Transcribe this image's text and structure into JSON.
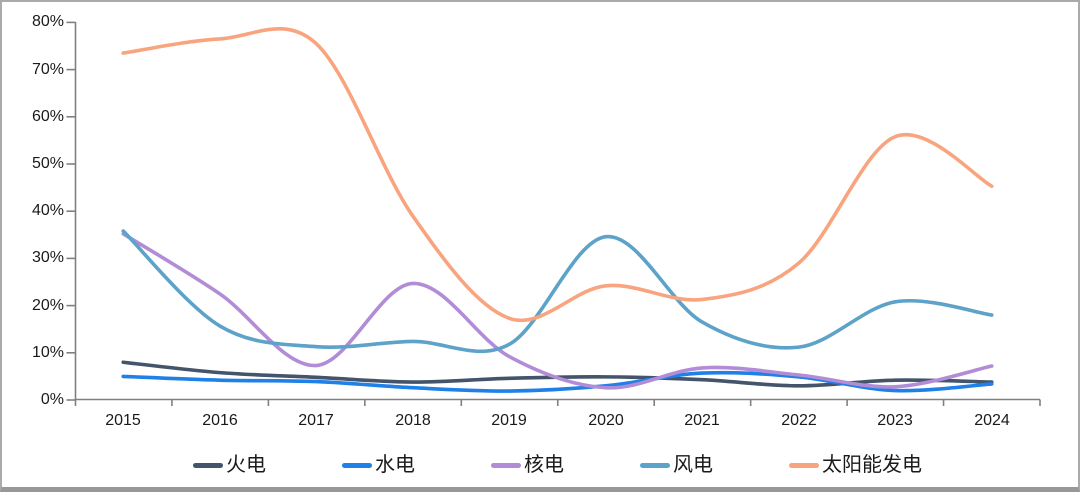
{
  "chart_data": {
    "type": "line",
    "title": "",
    "xlabel": "",
    "ylabel": "",
    "grid": false,
    "legend_position": "bottom",
    "ylim": [
      0,
      80
    ],
    "yticks": [
      "80%",
      "70%",
      "60%",
      "50%",
      "40%",
      "30%",
      "20%",
      "10%",
      "0%"
    ],
    "categories": [
      "2015",
      "2016",
      "2017",
      "2018",
      "2019",
      "2020",
      "2021",
      "2022",
      "2023",
      "2024"
    ],
    "series": [
      {
        "name": "火电",
        "color": "#44546A",
        "values": [
          8.0,
          5.8,
          4.8,
          3.8,
          4.6,
          4.9,
          4.3,
          3.0,
          4.2,
          3.8
        ]
      },
      {
        "name": "水电",
        "color": "#1F80E8",
        "values": [
          5.0,
          4.2,
          3.9,
          2.6,
          1.9,
          3.0,
          5.7,
          4.9,
          2.0,
          3.4
        ]
      },
      {
        "name": "核电",
        "color": "#B28CD6",
        "values": [
          35.2,
          22.5,
          7.3,
          24.7,
          9.2,
          2.6,
          6.8,
          5.3,
          2.8,
          7.2
        ]
      },
      {
        "name": "风电",
        "color": "#5CA2C9",
        "values": [
          35.8,
          15.7,
          11.3,
          12.4,
          11.8,
          34.6,
          16.5,
          11.2,
          20.8,
          18.0
        ]
      },
      {
        "name": "太阳能发电",
        "color": "#F8A47E",
        "values": [
          73.5,
          76.5,
          75.5,
          39.0,
          17.3,
          24.2,
          21.3,
          29.0,
          55.8,
          45.3
        ]
      }
    ],
    "axis_color": "#808080"
  }
}
